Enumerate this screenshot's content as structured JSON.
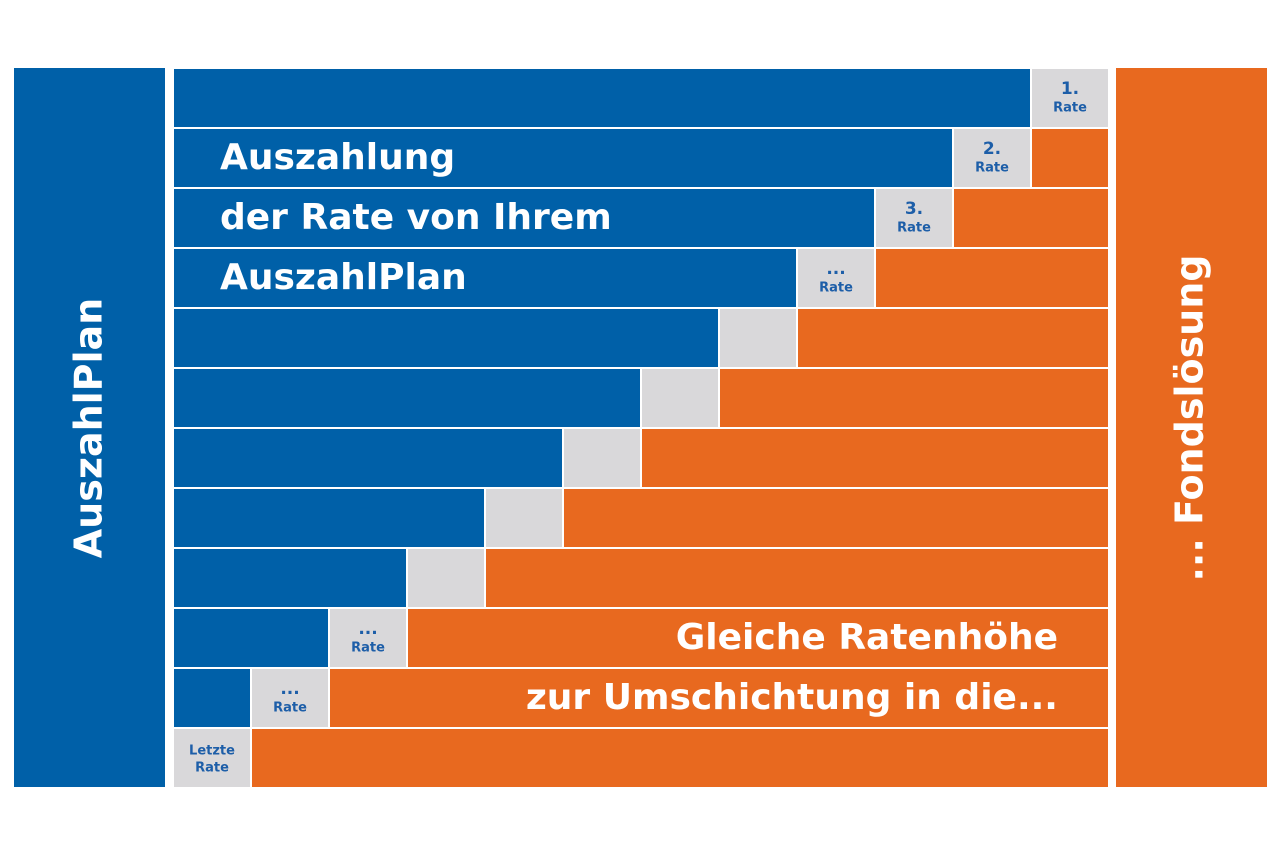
{
  "side_labels": {
    "left": "AuszahlPlan",
    "right": "... Fondslösung"
  },
  "blue_text": [
    "Auszahlung",
    "der Rate von Ihrem",
    "AuszahlPlan"
  ],
  "orange_text": [
    "Gleiche Ratenhöhe",
    "zur Umschichtung in die..."
  ],
  "rate_cells": [
    {
      "mark": "1.",
      "label": "Rate"
    },
    {
      "mark": "2.",
      "label": "Rate"
    },
    {
      "mark": "3.",
      "label": "Rate"
    },
    {
      "mark": "...",
      "label": "Rate"
    },
    {
      "mark": "...",
      "label": "Rate"
    },
    {
      "mark": "...",
      "label": "Rate"
    },
    {
      "mark": "Letzte",
      "label": "Rate"
    }
  ]
}
